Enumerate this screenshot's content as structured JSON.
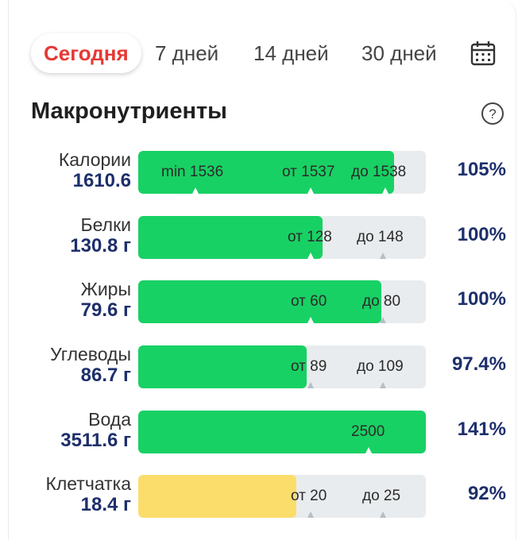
{
  "tabs": [
    {
      "label": "Сегодня",
      "active": true
    },
    {
      "label": "7 дней",
      "active": false
    },
    {
      "label": "14 дней",
      "active": false
    },
    {
      "label": "30 дней",
      "active": false
    }
  ],
  "icons": {
    "calendar": "calendar-icon",
    "help": "help-circle-icon"
  },
  "section": {
    "title": "Макронутриенты"
  },
  "colors": {
    "accent": "#e53935",
    "value": "#1d2f6b",
    "green": "#18d164",
    "yellow": "#fbdd6c",
    "track": "#e9ecee"
  },
  "rows": [
    {
      "label": "Калории",
      "value": "1610.6",
      "percent": "105%",
      "fill": 0.89,
      "color": "green",
      "marks": [
        {
          "text": "min 1536",
          "pos": 0.08
        },
        {
          "text": "от 1537",
          "pos": 0.5
        },
        {
          "text": "до 1538",
          "pos": 0.74
        }
      ],
      "ticks": [
        0.2,
        0.6,
        0.86
      ]
    },
    {
      "label": "Белки",
      "value": "130.8 г",
      "percent": "100%",
      "fill": 0.64,
      "color": "green",
      "marks": [
        {
          "text": "от 128",
          "pos": 0.52
        },
        {
          "text": "до 148",
          "pos": 0.76
        }
      ],
      "ticks": [
        0.6,
        0.85
      ]
    },
    {
      "label": "Жиры",
      "value": "79.6 г",
      "percent": "100%",
      "fill": 0.845,
      "color": "green",
      "marks": [
        {
          "text": "от 60",
          "pos": 0.53
        },
        {
          "text": "до 80",
          "pos": 0.78
        }
      ],
      "ticks": [
        0.6,
        0.85
      ]
    },
    {
      "label": "Углеводы",
      "value": "86.7 г",
      "percent": "97.4%",
      "fill": 0.585,
      "color": "green",
      "marks": [
        {
          "text": "от 89",
          "pos": 0.53
        },
        {
          "text": "до 109",
          "pos": 0.76
        }
      ],
      "ticks": [
        0.6,
        0.85
      ]
    },
    {
      "label": "Вода",
      "value": "3511.6 г",
      "percent": "141%",
      "fill": 1.0,
      "color": "green",
      "marks": [
        {
          "text": "2500",
          "pos": 0.74
        }
      ],
      "ticks": [
        0.8
      ]
    },
    {
      "label": "Клетчатка",
      "value": "18.4 г",
      "percent": "92%",
      "fill": 0.55,
      "color": "yellow",
      "marks": [
        {
          "text": "от 20",
          "pos": 0.53
        },
        {
          "text": "до 25",
          "pos": 0.78
        }
      ],
      "ticks": [
        0.6,
        0.85
      ]
    }
  ]
}
